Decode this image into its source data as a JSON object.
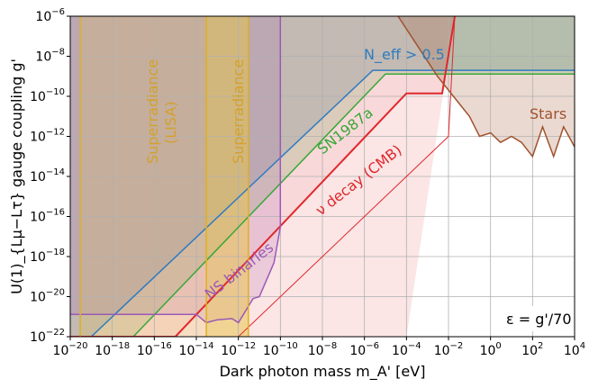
{
  "chart_data": {
    "type": "area",
    "title": "",
    "xlabel": "Dark photon mass m_A' [eV]",
    "ylabel": "U(1)_{Lμ−Lτ} gauge coupling g'",
    "x_scale": "log",
    "y_scale": "log",
    "xlim": [
      1e-20,
      10000.0
    ],
    "ylim": [
      1e-22,
      1e-06
    ],
    "grid": true,
    "x_ticks": [
      {
        "value": 1e-20,
        "base": "10",
        "exp": "−20"
      },
      {
        "value": 1e-18,
        "base": "10",
        "exp": "−18"
      },
      {
        "value": 1e-16,
        "base": "10",
        "exp": "−16"
      },
      {
        "value": 1e-14,
        "base": "10",
        "exp": "−14"
      },
      {
        "value": 1e-12,
        "base": "10",
        "exp": "−12"
      },
      {
        "value": 1e-10,
        "base": "10",
        "exp": "−10"
      },
      {
        "value": 1e-08,
        "base": "10",
        "exp": "−8"
      },
      {
        "value": 1e-06,
        "base": "10",
        "exp": "−6"
      },
      {
        "value": 0.0001,
        "base": "10",
        "exp": "−4"
      },
      {
        "value": 0.01,
        "base": "10",
        "exp": "−2"
      },
      {
        "value": 1,
        "base": "10",
        "exp": "0"
      },
      {
        "value": 100.0,
        "base": "10",
        "exp": "2"
      },
      {
        "value": 10000.0,
        "base": "10",
        "exp": "4"
      }
    ],
    "y_ticks": [
      {
        "value": 1e-22,
        "base": "10",
        "exp": "−22"
      },
      {
        "value": 1e-20,
        "base": "10",
        "exp": "−20"
      },
      {
        "value": 1e-18,
        "base": "10",
        "exp": "−18"
      },
      {
        "value": 1e-16,
        "base": "10",
        "exp": "−16"
      },
      {
        "value": 1e-14,
        "base": "10",
        "exp": "−14"
      },
      {
        "value": 1e-12,
        "base": "10",
        "exp": "−12"
      },
      {
        "value": 1e-10,
        "base": "10",
        "exp": "−10"
      },
      {
        "value": 1e-08,
        "base": "10",
        "exp": "−8"
      },
      {
        "value": 1e-06,
        "base": "10",
        "exp": "−6"
      }
    ],
    "annotations": {
      "neff": "N_eff > 0.5",
      "sn1987a": "SN1987a",
      "nu_decay": "ν decay (CMB)",
      "superradiance_lisa": [
        "Superradiance",
        "(LISA)"
      ],
      "superradiance": "Superradiance",
      "ns_binaries": "NS binaries",
      "stars": "Stars",
      "epsilon": "ε = g'/70"
    },
    "regions": [
      {
        "name": "Superradiance (LISA)",
        "color": "#e8c44a",
        "x_range": [
          3e-20,
          3e-12
        ]
      },
      {
        "name": "Superradiance",
        "color": "#e8c44a",
        "x_range": [
          3e-14,
          3e-12
        ]
      },
      {
        "name": "N_eff > 0.5",
        "color": "#2f7bbf",
        "boundary": [
          [
            1e-20,
            1e-22
          ],
          [
            1e-19,
            1e-22
          ],
          [
            2.5e-06,
            2e-09
          ],
          [
            10000.0,
            2e-09
          ]
        ]
      },
      {
        "name": "SN1987a",
        "color": "#3aa83a",
        "boundary": [
          [
            1e-20,
            1e-22
          ],
          [
            1e-17,
            1e-22
          ],
          [
            1e-05,
            1.3e-09
          ],
          [
            10000.0,
            1.3e-09
          ]
        ]
      },
      {
        "name": "ν decay (CMB)",
        "color": "#e0282c",
        "boundary": [
          [
            1e-20,
            1e-22
          ],
          [
            1e-15,
            1e-22
          ],
          [
            0.0001,
            1.4e-10
          ],
          [
            0.005,
            1.4e-10
          ],
          [
            0.02,
            1e-06
          ]
        ]
      },
      {
        "name": "NS binaries",
        "color": "#9b59b6",
        "boundary": [
          [
            1e-20,
            1.3e-21
          ],
          [
            1e-14,
            1.3e-21
          ],
          [
            3e-14,
            5e-22
          ],
          [
            1e-13,
            7e-22
          ],
          [
            5e-13,
            8e-22
          ],
          [
            1e-12,
            5e-22
          ],
          [
            5e-12,
            8e-21
          ],
          [
            1e-11,
            1e-20
          ],
          [
            5e-11,
            5e-19
          ],
          [
            1e-10,
            3e-17
          ],
          [
            1e-10,
            1e-06
          ]
        ]
      },
      {
        "name": "Stars",
        "color": "#a0522d",
        "boundary": [
          [
            4e-05,
            1e-06
          ],
          [
            0.003,
            1e-09
          ],
          [
            0.1,
            1e-11
          ],
          [
            0.3,
            1e-12
          ],
          [
            1.0,
            1.5e-12
          ],
          [
            3.0,
            5e-13
          ],
          [
            10.0,
            1e-12
          ],
          [
            30.0,
            5e-13
          ],
          [
            100.0,
            1e-13
          ],
          [
            300.0,
            3e-12
          ],
          [
            1000.0,
            1e-13
          ],
          [
            3000.0,
            3e-12
          ],
          [
            10000.0,
            3e-13
          ]
        ]
      }
    ]
  }
}
